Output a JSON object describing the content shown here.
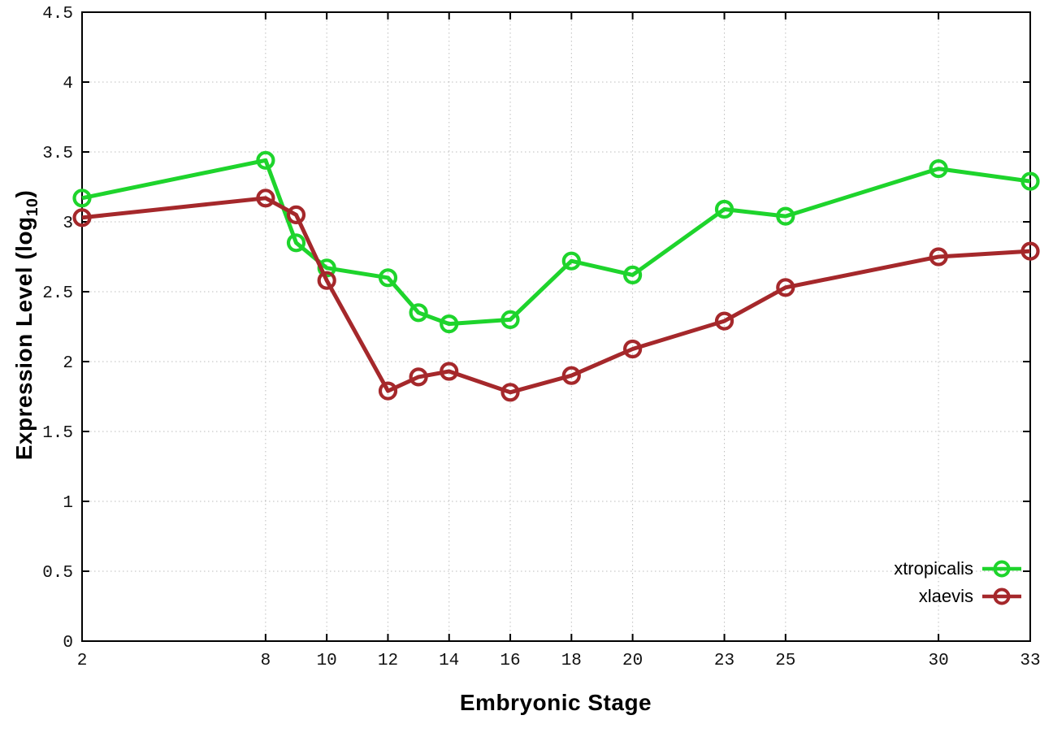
{
  "figure": {
    "background_color": "#ffffff"
  },
  "axis_titles": {
    "x": "Embryonic Stage",
    "y_prefix": "Expression Level (log",
    "y_sub": "10",
    "y_suffix": ")"
  },
  "chart_data": {
    "type": "line",
    "title": "",
    "xlabel": "Embryonic Stage",
    "ylabel": "Expression Level (log10)",
    "xlim": [
      2,
      33
    ],
    "ylim": [
      0,
      4.5
    ],
    "grid": true,
    "legend_position": "inside bottom-right",
    "x_tick_values": [
      2,
      8,
      10,
      12,
      14,
      16,
      18,
      20,
      23,
      25,
      30,
      33
    ],
    "x_tick_labels": [
      "2",
      "8",
      "10",
      "12",
      "14",
      "16",
      "18",
      "20",
      "23",
      "25",
      "30",
      "33"
    ],
    "y_tick_values": [
      0,
      0.5,
      1,
      1.5,
      2,
      2.5,
      3,
      3.5,
      4,
      4.5
    ],
    "y_tick_labels": [
      "0",
      "0.5",
      "1",
      "1.5",
      "2",
      "2.5",
      "3",
      "3.5",
      "4",
      "4.5"
    ],
    "x": [
      2,
      8,
      9,
      10,
      12,
      13,
      14,
      16,
      18,
      20,
      23,
      25,
      30,
      33
    ],
    "series": [
      {
        "name": "xtropicalis",
        "color": "#1ed42c",
        "marker": "open-circle",
        "values": [
          3.17,
          3.44,
          2.85,
          2.67,
          2.6,
          2.35,
          2.27,
          2.3,
          2.72,
          2.62,
          3.09,
          3.04,
          3.38,
          3.29
        ]
      },
      {
        "name": "xlaevis",
        "color": "#a5282b",
        "marker": "open-circle",
        "values": [
          3.03,
          3.17,
          3.05,
          2.58,
          1.79,
          1.89,
          1.93,
          1.78,
          1.9,
          2.09,
          2.29,
          2.53,
          2.75,
          2.79
        ]
      }
    ],
    "colors": {
      "grid": "#bdbdbd",
      "axis": "#000000",
      "tick_text": "#111111"
    }
  }
}
